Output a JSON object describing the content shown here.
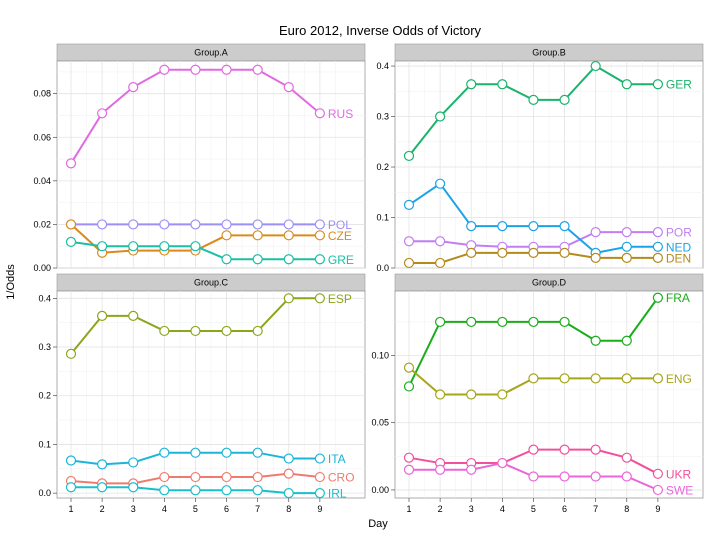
{
  "chart_data": {
    "type": "line",
    "title": "Euro 2012, Inverse Odds of Victory",
    "xlabel": "Day",
    "ylabel": "1/Odds",
    "x": [
      1,
      2,
      3,
      4,
      5,
      6,
      7,
      8,
      9
    ],
    "grid": true,
    "panels": [
      {
        "name": "Group.A",
        "ylim": [
          0,
          0.095
        ],
        "yticks": [
          0.0,
          0.02,
          0.04,
          0.06,
          0.08
        ],
        "ytick_labels": [
          "0.00",
          "0.02",
          "0.04",
          "0.06",
          "0.08"
        ],
        "series": [
          {
            "name": "RUS",
            "color": "#e06be0",
            "values": [
              0.048,
              0.071,
              0.083,
              0.091,
              0.091,
              0.091,
              0.091,
              0.083,
              0.071
            ]
          },
          {
            "name": "POL",
            "color": "#9d8ff5",
            "values": [
              0.02,
              0.02,
              0.02,
              0.02,
              0.02,
              0.02,
              0.02,
              0.02,
              0.02
            ]
          },
          {
            "name": "CZE",
            "color": "#d98a1a",
            "values": [
              0.02,
              0.007,
              0.008,
              0.008,
              0.008,
              0.015,
              0.015,
              0.015,
              0.015
            ]
          },
          {
            "name": "GRE",
            "color": "#1abfa6",
            "values": [
              0.012,
              0.01,
              0.01,
              0.01,
              0.01,
              0.004,
              0.004,
              0.004,
              0.004
            ]
          }
        ]
      },
      {
        "name": "Group.B",
        "ylim": [
          0,
          0.41
        ],
        "yticks": [
          0.0,
          0.1,
          0.2,
          0.3,
          0.4
        ],
        "ytick_labels": [
          "0.0",
          "0.1",
          "0.2",
          "0.3",
          "0.4"
        ],
        "series": [
          {
            "name": "GER",
            "color": "#1ab36b",
            "values": [
              0.222,
              0.3,
              0.364,
              0.364,
              0.333,
              0.333,
              0.4,
              0.364,
              0.364
            ]
          },
          {
            "name": "POR",
            "color": "#c27ef2",
            "values": [
              0.053,
              0.053,
              0.045,
              0.042,
              0.042,
              0.042,
              0.071,
              0.071,
              0.071
            ]
          },
          {
            "name": "NED",
            "color": "#1aa3e6",
            "values": [
              0.125,
              0.167,
              0.083,
              0.083,
              0.083,
              0.083,
              0.03,
              0.042,
              0.042
            ]
          },
          {
            "name": "DEN",
            "color": "#b58a1a",
            "values": [
              0.01,
              0.01,
              0.03,
              0.03,
              0.03,
              0.03,
              0.02,
              0.02,
              0.02
            ]
          }
        ]
      },
      {
        "name": "Group.C",
        "ylim": [
          -0.01,
          0.415
        ],
        "yticks": [
          0.0,
          0.1,
          0.2,
          0.3,
          0.4
        ],
        "ytick_labels": [
          "0.0",
          "0.1",
          "0.2",
          "0.3",
          "0.4"
        ],
        "series": [
          {
            "name": "ESP",
            "color": "#8aa61a",
            "values": [
              0.286,
              0.364,
              0.364,
              0.333,
              0.333,
              0.333,
              0.333,
              0.4,
              0.4
            ]
          },
          {
            "name": "ITA",
            "color": "#1ab5d9",
            "values": [
              0.067,
              0.059,
              0.063,
              0.083,
              0.083,
              0.083,
              0.083,
              0.071,
              0.071
            ]
          },
          {
            "name": "CRO",
            "color": "#f07a6e",
            "values": [
              0.025,
              0.02,
              0.02,
              0.033,
              0.033,
              0.033,
              0.033,
              0.04,
              0.033
            ]
          },
          {
            "name": "IRL",
            "color": "#1abfcc",
            "values": [
              0.012,
              0.012,
              0.012,
              0.006,
              0.006,
              0.006,
              0.006,
              0.0,
              0.0
            ]
          }
        ]
      },
      {
        "name": "Group.D",
        "ylim": [
          -0.006,
          0.148
        ],
        "yticks": [
          0.0,
          0.05,
          0.1
        ],
        "ytick_labels": [
          "0.00",
          "0.05",
          "0.10"
        ],
        "series": [
          {
            "name": "FRA",
            "color": "#1aad1a",
            "values": [
              0.077,
              0.125,
              0.125,
              0.125,
              0.125,
              0.125,
              0.111,
              0.111,
              0.143
            ]
          },
          {
            "name": "ENG",
            "color": "#a6a61a",
            "values": [
              0.091,
              0.071,
              0.071,
              0.071,
              0.083,
              0.083,
              0.083,
              0.083,
              0.083
            ]
          },
          {
            "name": "UKR",
            "color": "#f0509e",
            "values": [
              0.024,
              0.02,
              0.02,
              0.02,
              0.03,
              0.03,
              0.03,
              0.024,
              0.012
            ]
          },
          {
            "name": "SWE",
            "color": "#ea66d9",
            "values": [
              0.015,
              0.015,
              0.015,
              0.02,
              0.01,
              0.01,
              0.01,
              0.01,
              0.0
            ]
          }
        ]
      }
    ]
  }
}
